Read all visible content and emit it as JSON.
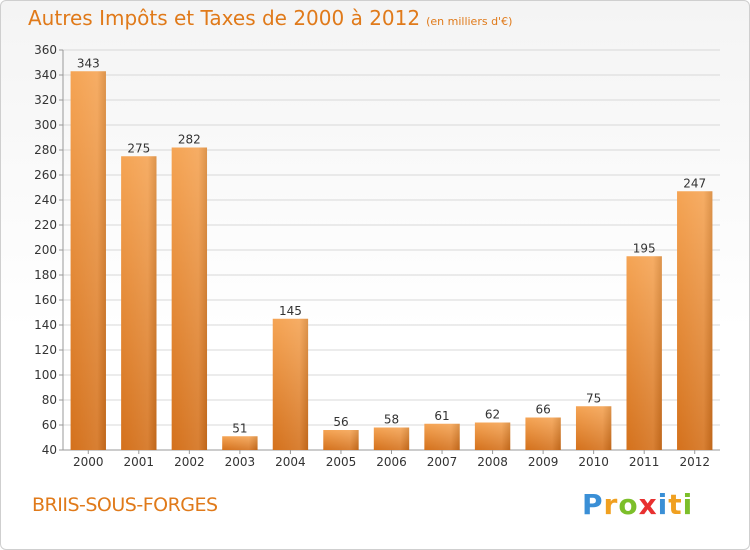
{
  "header": {
    "title": "Autres Impôts et Taxes de 2000 à 2012",
    "subtitle": "(en milliers d'€)"
  },
  "footer": {
    "commune": "BRIIS-SOUS-FORGES",
    "logo_letters": [
      "P",
      "r",
      "o",
      "x",
      "i",
      "t",
      "i"
    ],
    "logo_colors": [
      "#3a8fd6",
      "#f0a020",
      "#7cbf2a",
      "#e83030",
      "#3a8fd6",
      "#f0a020",
      "#7cbf2a"
    ]
  },
  "colors": {
    "bar_top": "#f5a454",
    "bar_bottom": "#d4711c",
    "text": "#333333",
    "accent": "#e07a1a",
    "grid": "#d8d8d8"
  },
  "chart_data": {
    "type": "bar",
    "categories": [
      "2000",
      "2001",
      "2002",
      "2003",
      "2004",
      "2005",
      "2006",
      "2007",
      "2008",
      "2009",
      "2010",
      "2011",
      "2012"
    ],
    "values": [
      343,
      275,
      282,
      51,
      145,
      56,
      58,
      61,
      62,
      66,
      75,
      195,
      247
    ],
    "ylim": [
      40,
      360
    ],
    "yticks": [
      40,
      60,
      80,
      100,
      120,
      140,
      160,
      180,
      200,
      220,
      240,
      260,
      280,
      300,
      320,
      340,
      360
    ],
    "grid": true
  }
}
